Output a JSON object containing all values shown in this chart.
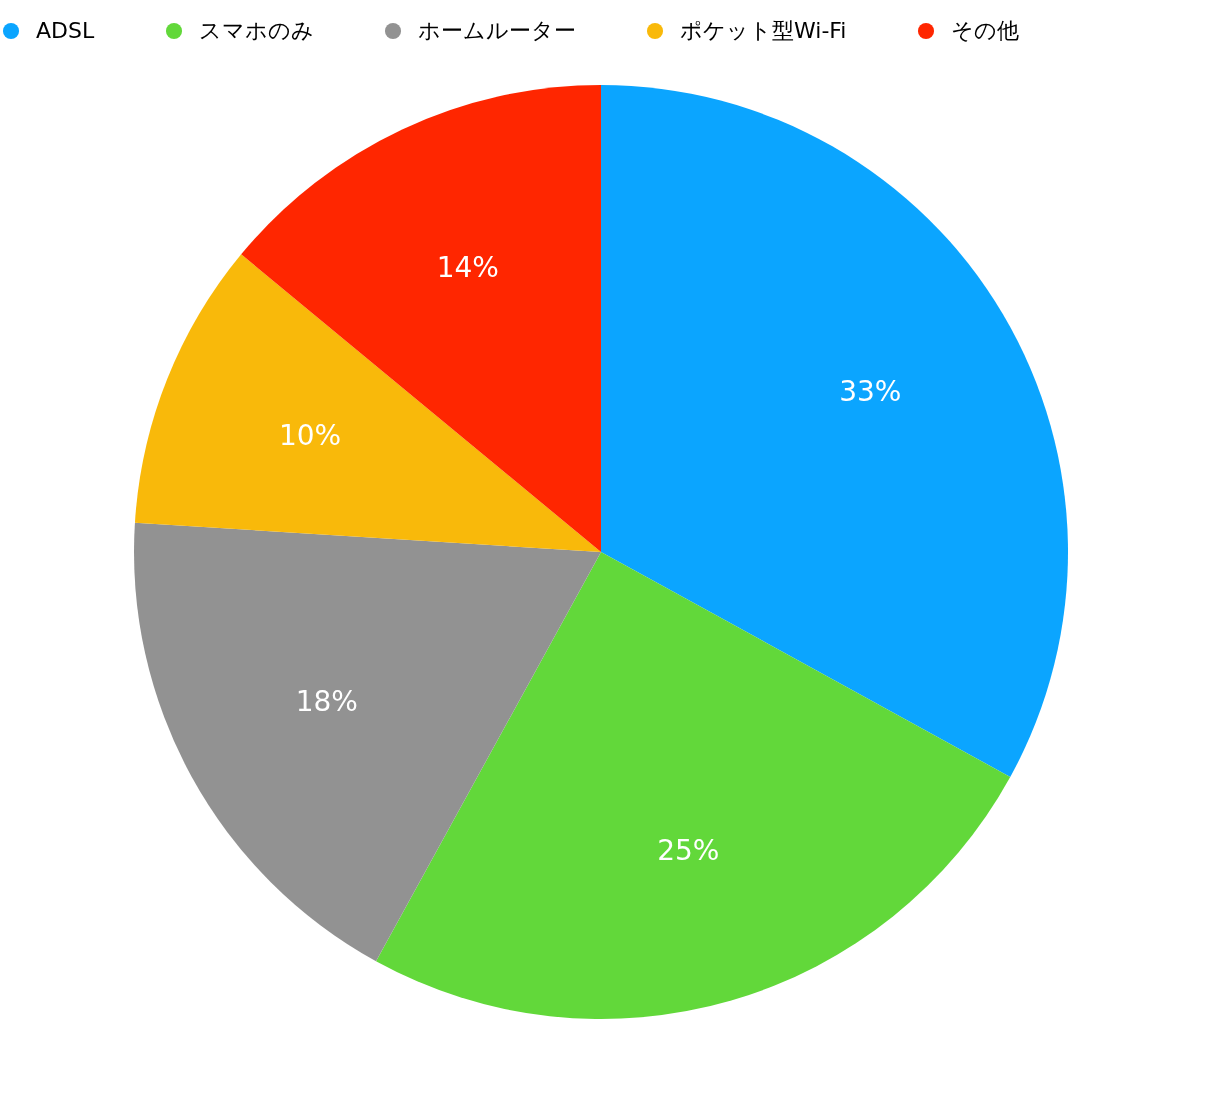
{
  "chart_data": {
    "type": "pie",
    "categories": [
      "ADSL",
      "スマホのみ",
      "ホームルーター",
      "ポケット型Wi-Fi",
      "その他"
    ],
    "values": [
      33,
      25,
      18,
      10,
      14
    ],
    "colors": [
      "#0ba5ff",
      "#62d83a",
      "#929292",
      "#f9b90a",
      "#ff2600"
    ],
    "value_labels": [
      "33%",
      "25%",
      "18%",
      "10%",
      "14%"
    ],
    "legend": "top"
  }
}
